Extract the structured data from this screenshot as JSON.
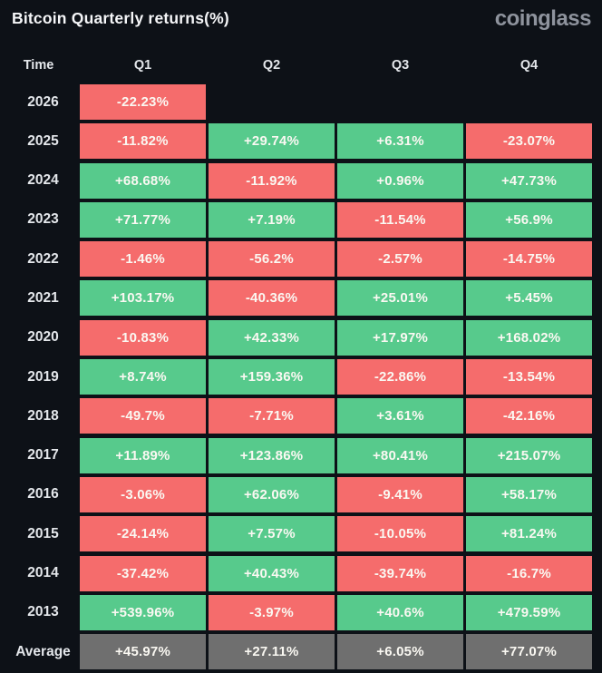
{
  "title": "Bitcoin Quarterly returns(%)",
  "brand": "coinglass",
  "columns": [
    "Time",
    "Q1",
    "Q2",
    "Q3",
    "Q4"
  ],
  "colors": {
    "background": "#0d1117",
    "positive": "#57ca8c",
    "negative": "#f56c6c",
    "average": "#6f6f6f",
    "value_text": "#faf8f2",
    "label_text": "#e4e7eb",
    "title_text": "#f5f6f8",
    "brand_text": "#8e939d"
  },
  "table": {
    "rows": [
      {
        "time": "2026",
        "cells": [
          {
            "text": "-22.23%",
            "kind": "neg"
          },
          {
            "text": "",
            "kind": "empty"
          },
          {
            "text": "",
            "kind": "empty"
          },
          {
            "text": "",
            "kind": "empty"
          }
        ]
      },
      {
        "time": "2025",
        "cells": [
          {
            "text": "-11.82%",
            "kind": "neg"
          },
          {
            "text": "+29.74%",
            "kind": "pos"
          },
          {
            "text": "+6.31%",
            "kind": "pos"
          },
          {
            "text": "-23.07%",
            "kind": "neg"
          }
        ]
      },
      {
        "time": "2024",
        "cells": [
          {
            "text": "+68.68%",
            "kind": "pos"
          },
          {
            "text": "-11.92%",
            "kind": "neg"
          },
          {
            "text": "+0.96%",
            "kind": "pos"
          },
          {
            "text": "+47.73%",
            "kind": "pos"
          }
        ]
      },
      {
        "time": "2023",
        "cells": [
          {
            "text": "+71.77%",
            "kind": "pos"
          },
          {
            "text": "+7.19%",
            "kind": "pos"
          },
          {
            "text": "-11.54%",
            "kind": "neg"
          },
          {
            "text": "+56.9%",
            "kind": "pos"
          }
        ]
      },
      {
        "time": "2022",
        "cells": [
          {
            "text": "-1.46%",
            "kind": "neg"
          },
          {
            "text": "-56.2%",
            "kind": "neg"
          },
          {
            "text": "-2.57%",
            "kind": "neg"
          },
          {
            "text": "-14.75%",
            "kind": "neg"
          }
        ]
      },
      {
        "time": "2021",
        "cells": [
          {
            "text": "+103.17%",
            "kind": "pos"
          },
          {
            "text": "-40.36%",
            "kind": "neg"
          },
          {
            "text": "+25.01%",
            "kind": "pos"
          },
          {
            "text": "+5.45%",
            "kind": "pos"
          }
        ]
      },
      {
        "time": "2020",
        "cells": [
          {
            "text": "-10.83%",
            "kind": "neg"
          },
          {
            "text": "+42.33%",
            "kind": "pos"
          },
          {
            "text": "+17.97%",
            "kind": "pos"
          },
          {
            "text": "+168.02%",
            "kind": "pos"
          }
        ]
      },
      {
        "time": "2019",
        "cells": [
          {
            "text": "+8.74%",
            "kind": "pos"
          },
          {
            "text": "+159.36%",
            "kind": "pos"
          },
          {
            "text": "-22.86%",
            "kind": "neg"
          },
          {
            "text": "-13.54%",
            "kind": "neg"
          }
        ]
      },
      {
        "time": "2018",
        "cells": [
          {
            "text": "-49.7%",
            "kind": "neg"
          },
          {
            "text": "-7.71%",
            "kind": "neg"
          },
          {
            "text": "+3.61%",
            "kind": "pos"
          },
          {
            "text": "-42.16%",
            "kind": "neg"
          }
        ]
      },
      {
        "time": "2017",
        "cells": [
          {
            "text": "+11.89%",
            "kind": "pos"
          },
          {
            "text": "+123.86%",
            "kind": "pos"
          },
          {
            "text": "+80.41%",
            "kind": "pos"
          },
          {
            "text": "+215.07%",
            "kind": "pos"
          }
        ]
      },
      {
        "time": "2016",
        "cells": [
          {
            "text": "-3.06%",
            "kind": "neg"
          },
          {
            "text": "+62.06%",
            "kind": "pos"
          },
          {
            "text": "-9.41%",
            "kind": "neg"
          },
          {
            "text": "+58.17%",
            "kind": "pos"
          }
        ]
      },
      {
        "time": "2015",
        "cells": [
          {
            "text": "-24.14%",
            "kind": "neg"
          },
          {
            "text": "+7.57%",
            "kind": "pos"
          },
          {
            "text": "-10.05%",
            "kind": "neg"
          },
          {
            "text": "+81.24%",
            "kind": "pos"
          }
        ]
      },
      {
        "time": "2014",
        "cells": [
          {
            "text": "-37.42%",
            "kind": "neg"
          },
          {
            "text": "+40.43%",
            "kind": "pos"
          },
          {
            "text": "-39.74%",
            "kind": "neg"
          },
          {
            "text": "-16.7%",
            "kind": "neg"
          }
        ]
      },
      {
        "time": "2013",
        "cells": [
          {
            "text": "+539.96%",
            "kind": "pos"
          },
          {
            "text": "-3.97%",
            "kind": "neg"
          },
          {
            "text": "+40.6%",
            "kind": "pos"
          },
          {
            "text": "+479.59%",
            "kind": "pos"
          }
        ]
      },
      {
        "time": "Average",
        "cells": [
          {
            "text": "+45.97%",
            "kind": "avg"
          },
          {
            "text": "+27.11%",
            "kind": "avg"
          },
          {
            "text": "+6.05%",
            "kind": "avg"
          },
          {
            "text": "+77.07%",
            "kind": "avg"
          }
        ]
      }
    ]
  },
  "chart_data": {
    "type": "heatmap",
    "title": "Bitcoin Quarterly returns(%)",
    "unit": "%",
    "columns": [
      "Q1",
      "Q2",
      "Q3",
      "Q4"
    ],
    "rows": [
      "2026",
      "2025",
      "2024",
      "2023",
      "2022",
      "2021",
      "2020",
      "2019",
      "2018",
      "2017",
      "2016",
      "2015",
      "2014",
      "2013",
      "Average"
    ],
    "values": [
      [
        -22.23,
        null,
        null,
        null
      ],
      [
        -11.82,
        29.74,
        6.31,
        -23.07
      ],
      [
        68.68,
        -11.92,
        0.96,
        47.73
      ],
      [
        71.77,
        7.19,
        -11.54,
        56.9
      ],
      [
        -1.46,
        -56.2,
        -2.57,
        -14.75
      ],
      [
        103.17,
        -40.36,
        25.01,
        5.45
      ],
      [
        -10.83,
        42.33,
        17.97,
        168.02
      ],
      [
        8.74,
        159.36,
        -22.86,
        -13.54
      ],
      [
        -49.7,
        -7.71,
        3.61,
        -42.16
      ],
      [
        11.89,
        123.86,
        80.41,
        215.07
      ],
      [
        -3.06,
        62.06,
        -9.41,
        58.17
      ],
      [
        -24.14,
        7.57,
        -10.05,
        81.24
      ],
      [
        -37.42,
        40.43,
        -39.74,
        -16.7
      ],
      [
        539.96,
        -3.97,
        40.6,
        479.59
      ],
      [
        45.97,
        27.11,
        6.05,
        77.07
      ]
    ],
    "color_rule": "green = positive return, red = negative return, gray = average row",
    "legend": "none",
    "grid": "off"
  }
}
